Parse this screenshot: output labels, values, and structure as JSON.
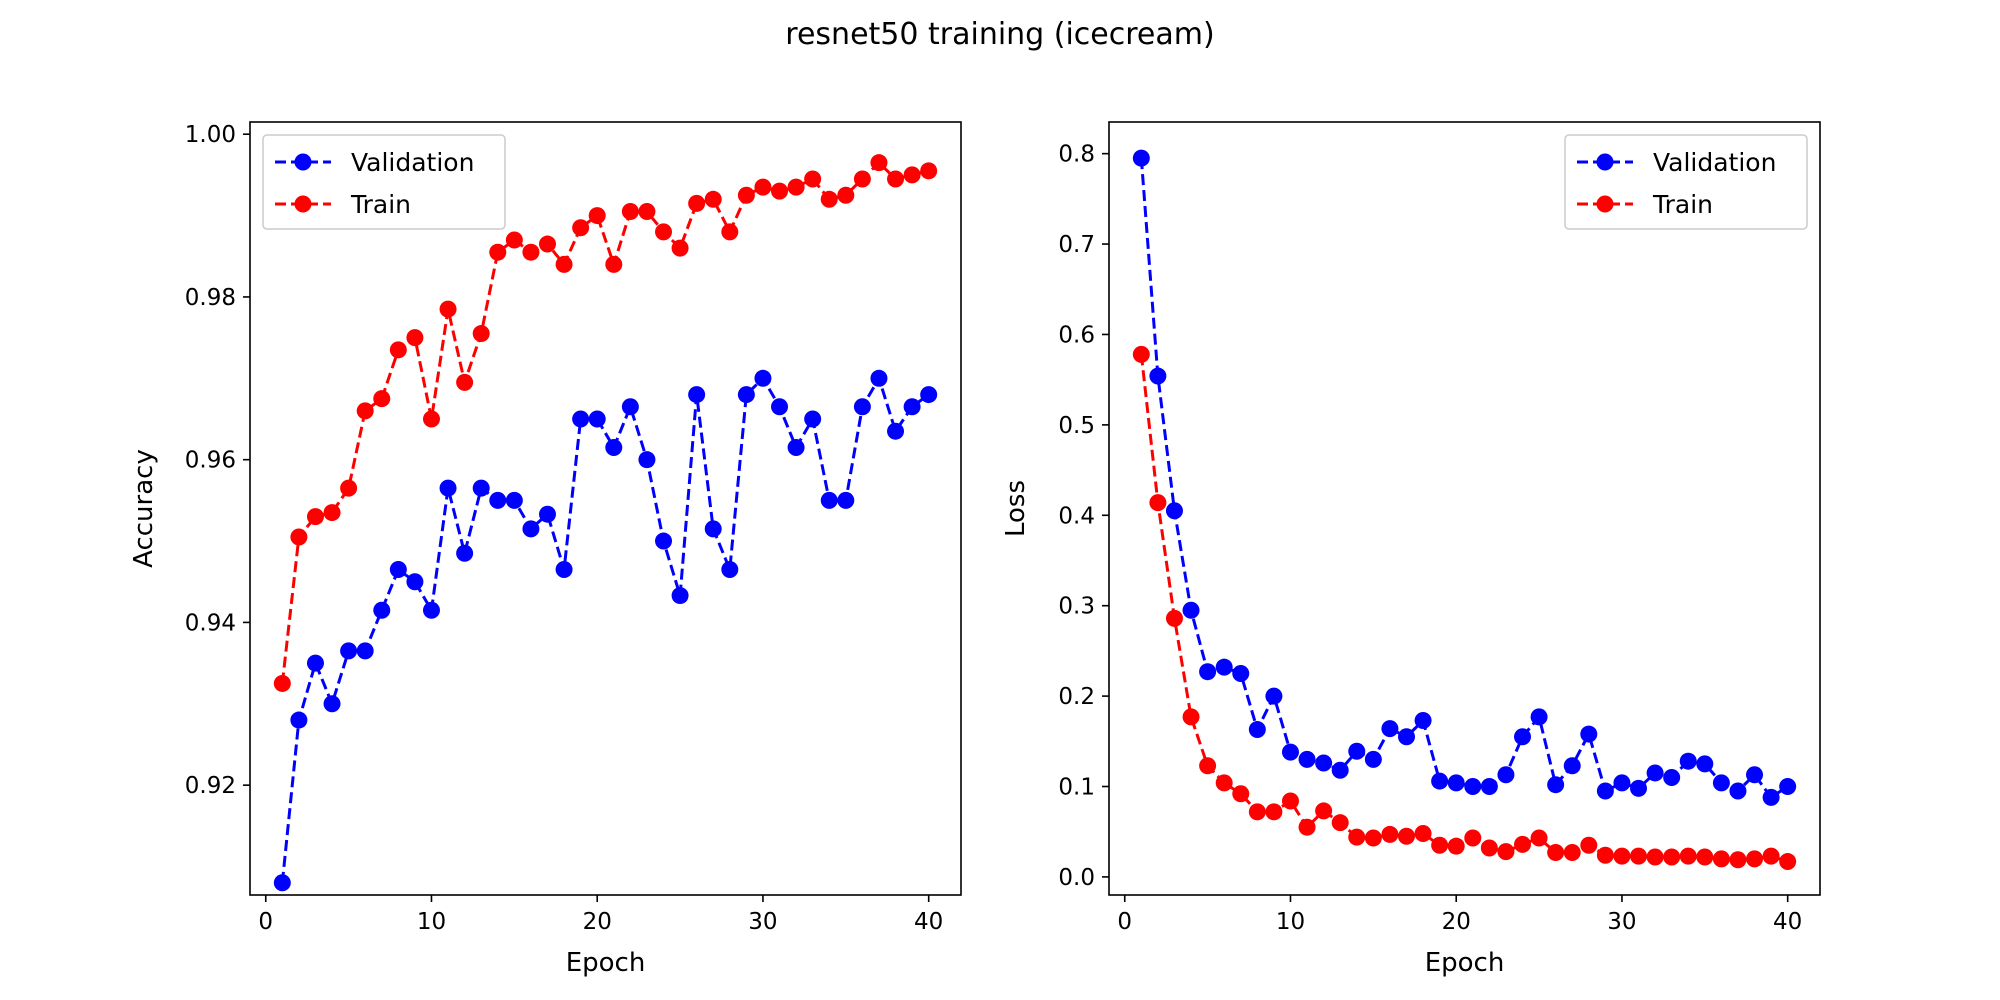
{
  "figure": {
    "title": "resnet50 training (icecream)"
  },
  "chart_data": [
    {
      "type": "line",
      "xlabel": "Epoch",
      "ylabel": "Accuracy",
      "xlim": [
        -0.95,
        41.95
      ],
      "ylim": [
        0.9065,
        1.0015
      ],
      "xticks": [
        0,
        10,
        20,
        30,
        40
      ],
      "xtick_labels": [
        "0",
        "10",
        "20",
        "30",
        "40"
      ],
      "yticks": [
        0.92,
        0.94,
        0.96,
        0.98,
        1.0
      ],
      "ytick_labels": [
        "0.92",
        "0.94",
        "0.96",
        "0.98",
        "1.00"
      ],
      "grid": false,
      "legend_position": "top-left",
      "x": [
        1,
        2,
        3,
        4,
        5,
        6,
        7,
        8,
        9,
        10,
        11,
        12,
        13,
        14,
        15,
        16,
        17,
        18,
        19,
        20,
        21,
        22,
        23,
        24,
        25,
        26,
        27,
        28,
        29,
        30,
        31,
        32,
        33,
        34,
        35,
        36,
        37,
        38,
        39,
        40
      ],
      "series": [
        {
          "name": "Validation",
          "color": "#0000ff",
          "linestyle": "dashed",
          "marker": "circle",
          "values": [
            0.908,
            0.928,
            0.935,
            0.93,
            0.9365,
            0.9365,
            0.9415,
            0.9465,
            0.945,
            0.9415,
            0.9565,
            0.9485,
            0.9565,
            0.955,
            0.955,
            0.9515,
            0.9533,
            0.9465,
            0.965,
            0.965,
            0.9615,
            0.9665,
            0.96,
            0.95,
            0.9433,
            0.968,
            0.9515,
            0.9465,
            0.968,
            0.97,
            0.9665,
            0.9615,
            0.965,
            0.955,
            0.955,
            0.9665,
            0.97,
            0.9635,
            0.9665,
            0.968
          ]
        },
        {
          "name": "Train",
          "color": "#ff0000",
          "linestyle": "dashed",
          "marker": "circle",
          "values": [
            0.9325,
            0.9505,
            0.953,
            0.9535,
            0.9565,
            0.966,
            0.9675,
            0.9735,
            0.975,
            0.965,
            0.9785,
            0.9695,
            0.9755,
            0.9855,
            0.987,
            0.9855,
            0.9865,
            0.984,
            0.9885,
            0.99,
            0.984,
            0.9905,
            0.9905,
            0.988,
            0.986,
            0.9915,
            0.992,
            0.988,
            0.9925,
            0.9935,
            0.993,
            0.9935,
            0.9945,
            0.992,
            0.9925,
            0.9945,
            0.9965,
            0.9945,
            0.995,
            0.9955
          ]
        }
      ]
    },
    {
      "type": "line",
      "xlabel": "Epoch",
      "ylabel": "Loss",
      "xlim": [
        -0.95,
        41.95
      ],
      "ylim": [
        -0.02,
        0.835
      ],
      "xticks": [
        0,
        10,
        20,
        30,
        40
      ],
      "xtick_labels": [
        "0",
        "10",
        "20",
        "30",
        "40"
      ],
      "yticks": [
        0.0,
        0.1,
        0.2,
        0.3,
        0.4,
        0.5,
        0.6,
        0.7,
        0.8
      ],
      "ytick_labels": [
        "0.0",
        "0.1",
        "0.2",
        "0.3",
        "0.4",
        "0.5",
        "0.6",
        "0.7",
        "0.8"
      ],
      "grid": false,
      "legend_position": "top-right",
      "x": [
        1,
        2,
        3,
        4,
        5,
        6,
        7,
        8,
        9,
        10,
        11,
        12,
        13,
        14,
        15,
        16,
        17,
        18,
        19,
        20,
        21,
        22,
        23,
        24,
        25,
        26,
        27,
        28,
        29,
        30,
        31,
        32,
        33,
        34,
        35,
        36,
        37,
        38,
        39,
        40
      ],
      "series": [
        {
          "name": "Validation",
          "color": "#0000ff",
          "linestyle": "dashed",
          "marker": "circle",
          "values": [
            0.795,
            0.554,
            0.405,
            0.295,
            0.227,
            0.232,
            0.225,
            0.163,
            0.2,
            0.138,
            0.13,
            0.126,
            0.118,
            0.139,
            0.13,
            0.164,
            0.155,
            0.173,
            0.106,
            0.104,
            0.1,
            0.1,
            0.113,
            0.155,
            0.177,
            0.102,
            0.123,
            0.158,
            0.095,
            0.104,
            0.098,
            0.115,
            0.11,
            0.128,
            0.125,
            0.104,
            0.095,
            0.113,
            0.088,
            0.1
          ]
        },
        {
          "name": "Train",
          "color": "#ff0000",
          "linestyle": "dashed",
          "marker": "circle",
          "values": [
            0.578,
            0.414,
            0.286,
            0.177,
            0.123,
            0.104,
            0.092,
            0.072,
            0.072,
            0.084,
            0.055,
            0.073,
            0.06,
            0.044,
            0.043,
            0.047,
            0.045,
            0.048,
            0.035,
            0.034,
            0.043,
            0.032,
            0.028,
            0.036,
            0.043,
            0.027,
            0.027,
            0.035,
            0.024,
            0.023,
            0.023,
            0.022,
            0.022,
            0.023,
            0.022,
            0.02,
            0.019,
            0.02,
            0.023,
            0.017
          ]
        }
      ]
    }
  ]
}
